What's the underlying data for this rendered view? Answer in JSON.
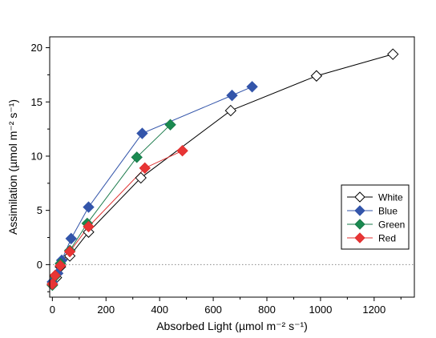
{
  "chart_data": {
    "type": "line",
    "title": "",
    "xlabel": "Absorbed Light (µmol m⁻² s⁻¹)",
    "ylabel": "Assimilation (µmol m⁻² s⁻¹)",
    "xlim": [
      -10,
      1350
    ],
    "ylim": [
      -3,
      21
    ],
    "xticks": [
      0,
      200,
      400,
      600,
      800,
      1000,
      1200
    ],
    "yticks": [
      0,
      5,
      10,
      15,
      20
    ],
    "zero_reference_line": "dotted",
    "grid": false,
    "legend_position": "right-middle",
    "series": [
      {
        "name": "White",
        "color": "#000000",
        "marker_fill": "#ffffff",
        "marker": "diamond",
        "x": [
          0,
          15,
          30,
          65,
          135,
          330,
          665,
          985,
          1270
        ],
        "y": [
          -1.8,
          -1.2,
          -0.2,
          0.8,
          3.0,
          8.0,
          14.2,
          17.4,
          19.4
        ]
      },
      {
        "name": "Blue",
        "color": "#3355aa",
        "marker_fill": "#3355aa",
        "marker": "diamond",
        "x": [
          0,
          20,
          35,
          70,
          135,
          335,
          670,
          745
        ],
        "y": [
          -1.6,
          -0.8,
          0.4,
          2.4,
          5.3,
          12.1,
          15.6,
          16.4
        ]
      },
      {
        "name": "Green",
        "color": "#1a7a4a",
        "marker_fill": "#1a8a50",
        "marker": "diamond",
        "x": [
          0,
          10,
          30,
          65,
          130,
          315,
          440
        ],
        "y": [
          -1.9,
          -1.1,
          0.1,
          1.3,
          3.8,
          9.9,
          12.9
        ]
      },
      {
        "name": "Red",
        "color": "#e03030",
        "marker_fill": "#e83535",
        "marker": "diamond",
        "x": [
          0,
          10,
          30,
          65,
          135,
          345,
          485
        ],
        "y": [
          -1.8,
          -1.0,
          -0.1,
          1.2,
          3.5,
          8.9,
          10.5
        ]
      }
    ]
  }
}
